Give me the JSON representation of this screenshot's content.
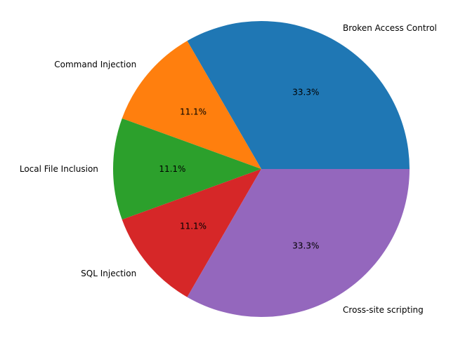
{
  "chart_data": {
    "type": "pie",
    "title": "",
    "categories": [
      "Broken Access Control",
      "Command Injection",
      "Local File Inclusion",
      "SQL Injection",
      "Cross-site scripting"
    ],
    "values": [
      3,
      1,
      1,
      1,
      3
    ],
    "percent_labels": [
      "33.3%",
      "11.1%",
      "11.1%",
      "11.1%",
      "33.3%"
    ],
    "colors": [
      "#1f77b4",
      "#ff7f0e",
      "#2ca02c",
      "#d62728",
      "#9467bd"
    ],
    "start_angle_deg": 0,
    "direction": "counterclockwise",
    "legend": "none"
  }
}
